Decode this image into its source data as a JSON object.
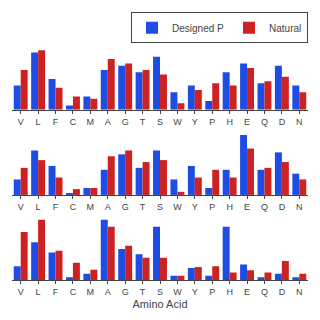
{
  "chart_data": [
    {
      "type": "bar",
      "categories": [
        "V",
        "L",
        "F",
        "C",
        "M",
        "A",
        "G",
        "T",
        "S",
        "W",
        "Y",
        "P",
        "H",
        "E",
        "Q",
        "D",
        "N"
      ],
      "series": [
        {
          "name": "Designed P",
          "color": "#1f4de4",
          "values": [
            0.055,
            0.13,
            0.07,
            0.01,
            0.03,
            0.09,
            0.1,
            0.085,
            0.12,
            0.04,
            0.055,
            0.02,
            0.085,
            0.105,
            0.06,
            0.1,
            0.055
          ]
        },
        {
          "name": "Natural",
          "color": "#cc2222",
          "values": [
            0.09,
            0.135,
            0.05,
            0.03,
            0.025,
            0.115,
            0.105,
            0.09,
            0.08,
            0.015,
            0.045,
            0.06,
            0.055,
            0.095,
            0.065,
            0.075,
            0.04
          ]
        }
      ],
      "ylim": [
        0,
        0.14
      ],
      "grid": false,
      "legend": "upper right",
      "tick_labels": "x"
    },
    {
      "type": "bar",
      "categories": [
        "V",
        "L",
        "F",
        "C",
        "M",
        "A",
        "G",
        "T",
        "S",
        "W",
        "Y",
        "P",
        "H",
        "E",
        "Q",
        "D",
        "N"
      ],
      "series": [
        {
          "name": "Designed P",
          "color": "#1f4de4",
          "values": [
            0.04,
            0.115,
            0.075,
            0.004,
            0.018,
            0.065,
            0.105,
            0.07,
            0.115,
            0.04,
            0.075,
            0.018,
            0.065,
            0.155,
            0.065,
            0.11,
            0.055
          ]
        },
        {
          "name": "Natural",
          "color": "#cc2222",
          "values": [
            0.07,
            0.09,
            0.045,
            0.015,
            0.018,
            0.1,
            0.115,
            0.085,
            0.09,
            0.008,
            0.045,
            0.065,
            0.045,
            0.12,
            0.07,
            0.085,
            0.04
          ]
        }
      ],
      "ylim": [
        0,
        0.16
      ],
      "grid": false,
      "tick_labels": "x"
    },
    {
      "type": "bar",
      "categories": [
        "V",
        "L",
        "F",
        "C",
        "M",
        "A",
        "G",
        "T",
        "S",
        "W",
        "Y",
        "P",
        "H",
        "E",
        "Q",
        "D",
        "N"
      ],
      "xlabel": "Amino Acid",
      "series": [
        {
          "name": "Designed P",
          "color": "#1f4de4",
          "values": [
            0.04,
            0.11,
            0.08,
            0.008,
            0.018,
            0.175,
            0.09,
            0.075,
            0.155,
            0.012,
            0.035,
            0.012,
            0.155,
            0.045,
            0.008,
            0.018,
            0.008
          ]
        },
        {
          "name": "Natural",
          "color": "#cc2222",
          "values": [
            0.14,
            0.175,
            0.085,
            0.05,
            0.03,
            0.155,
            0.1,
            0.065,
            0.065,
            0.012,
            0.038,
            0.04,
            0.022,
            0.028,
            0.022,
            0.055,
            0.018
          ]
        }
      ],
      "ylim": [
        0,
        0.18
      ],
      "grid": false,
      "tick_labels": "x"
    }
  ]
}
